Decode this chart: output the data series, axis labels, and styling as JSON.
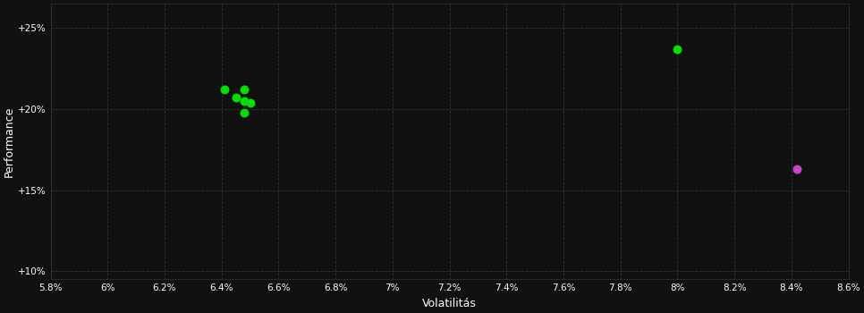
{
  "xlabel": "Volatilitás",
  "ylabel": "Performance",
  "background_color": "#111111",
  "text_color": "#ffffff",
  "xlim": [
    0.058,
    0.086
  ],
  "ylim": [
    0.095,
    0.265
  ],
  "xticks": [
    0.058,
    0.06,
    0.062,
    0.064,
    0.066,
    0.068,
    0.07,
    0.072,
    0.074,
    0.076,
    0.078,
    0.08,
    0.082,
    0.084,
    0.086
  ],
  "yticks": [
    0.1,
    0.15,
    0.2,
    0.25
  ],
  "ytick_labels": [
    "+10%",
    "+15%",
    "+20%",
    "+25%"
  ],
  "xtick_labels": [
    "5.8%",
    "6%",
    "6.2%",
    "6.4%",
    "6.6%",
    "6.8%",
    "7%",
    "7.2%",
    "7.4%",
    "7.6%",
    "7.8%",
    "8%",
    "8.2%",
    "8.4%",
    "8.6%"
  ],
  "green_points": [
    [
      0.0641,
      0.212
    ],
    [
      0.0648,
      0.212
    ],
    [
      0.0645,
      0.207
    ],
    [
      0.0648,
      0.205
    ],
    [
      0.065,
      0.204
    ],
    [
      0.0648,
      0.198
    ],
    [
      0.08,
      0.237
    ]
  ],
  "magenta_points": [
    [
      0.0842,
      0.163
    ]
  ],
  "point_size": 38
}
